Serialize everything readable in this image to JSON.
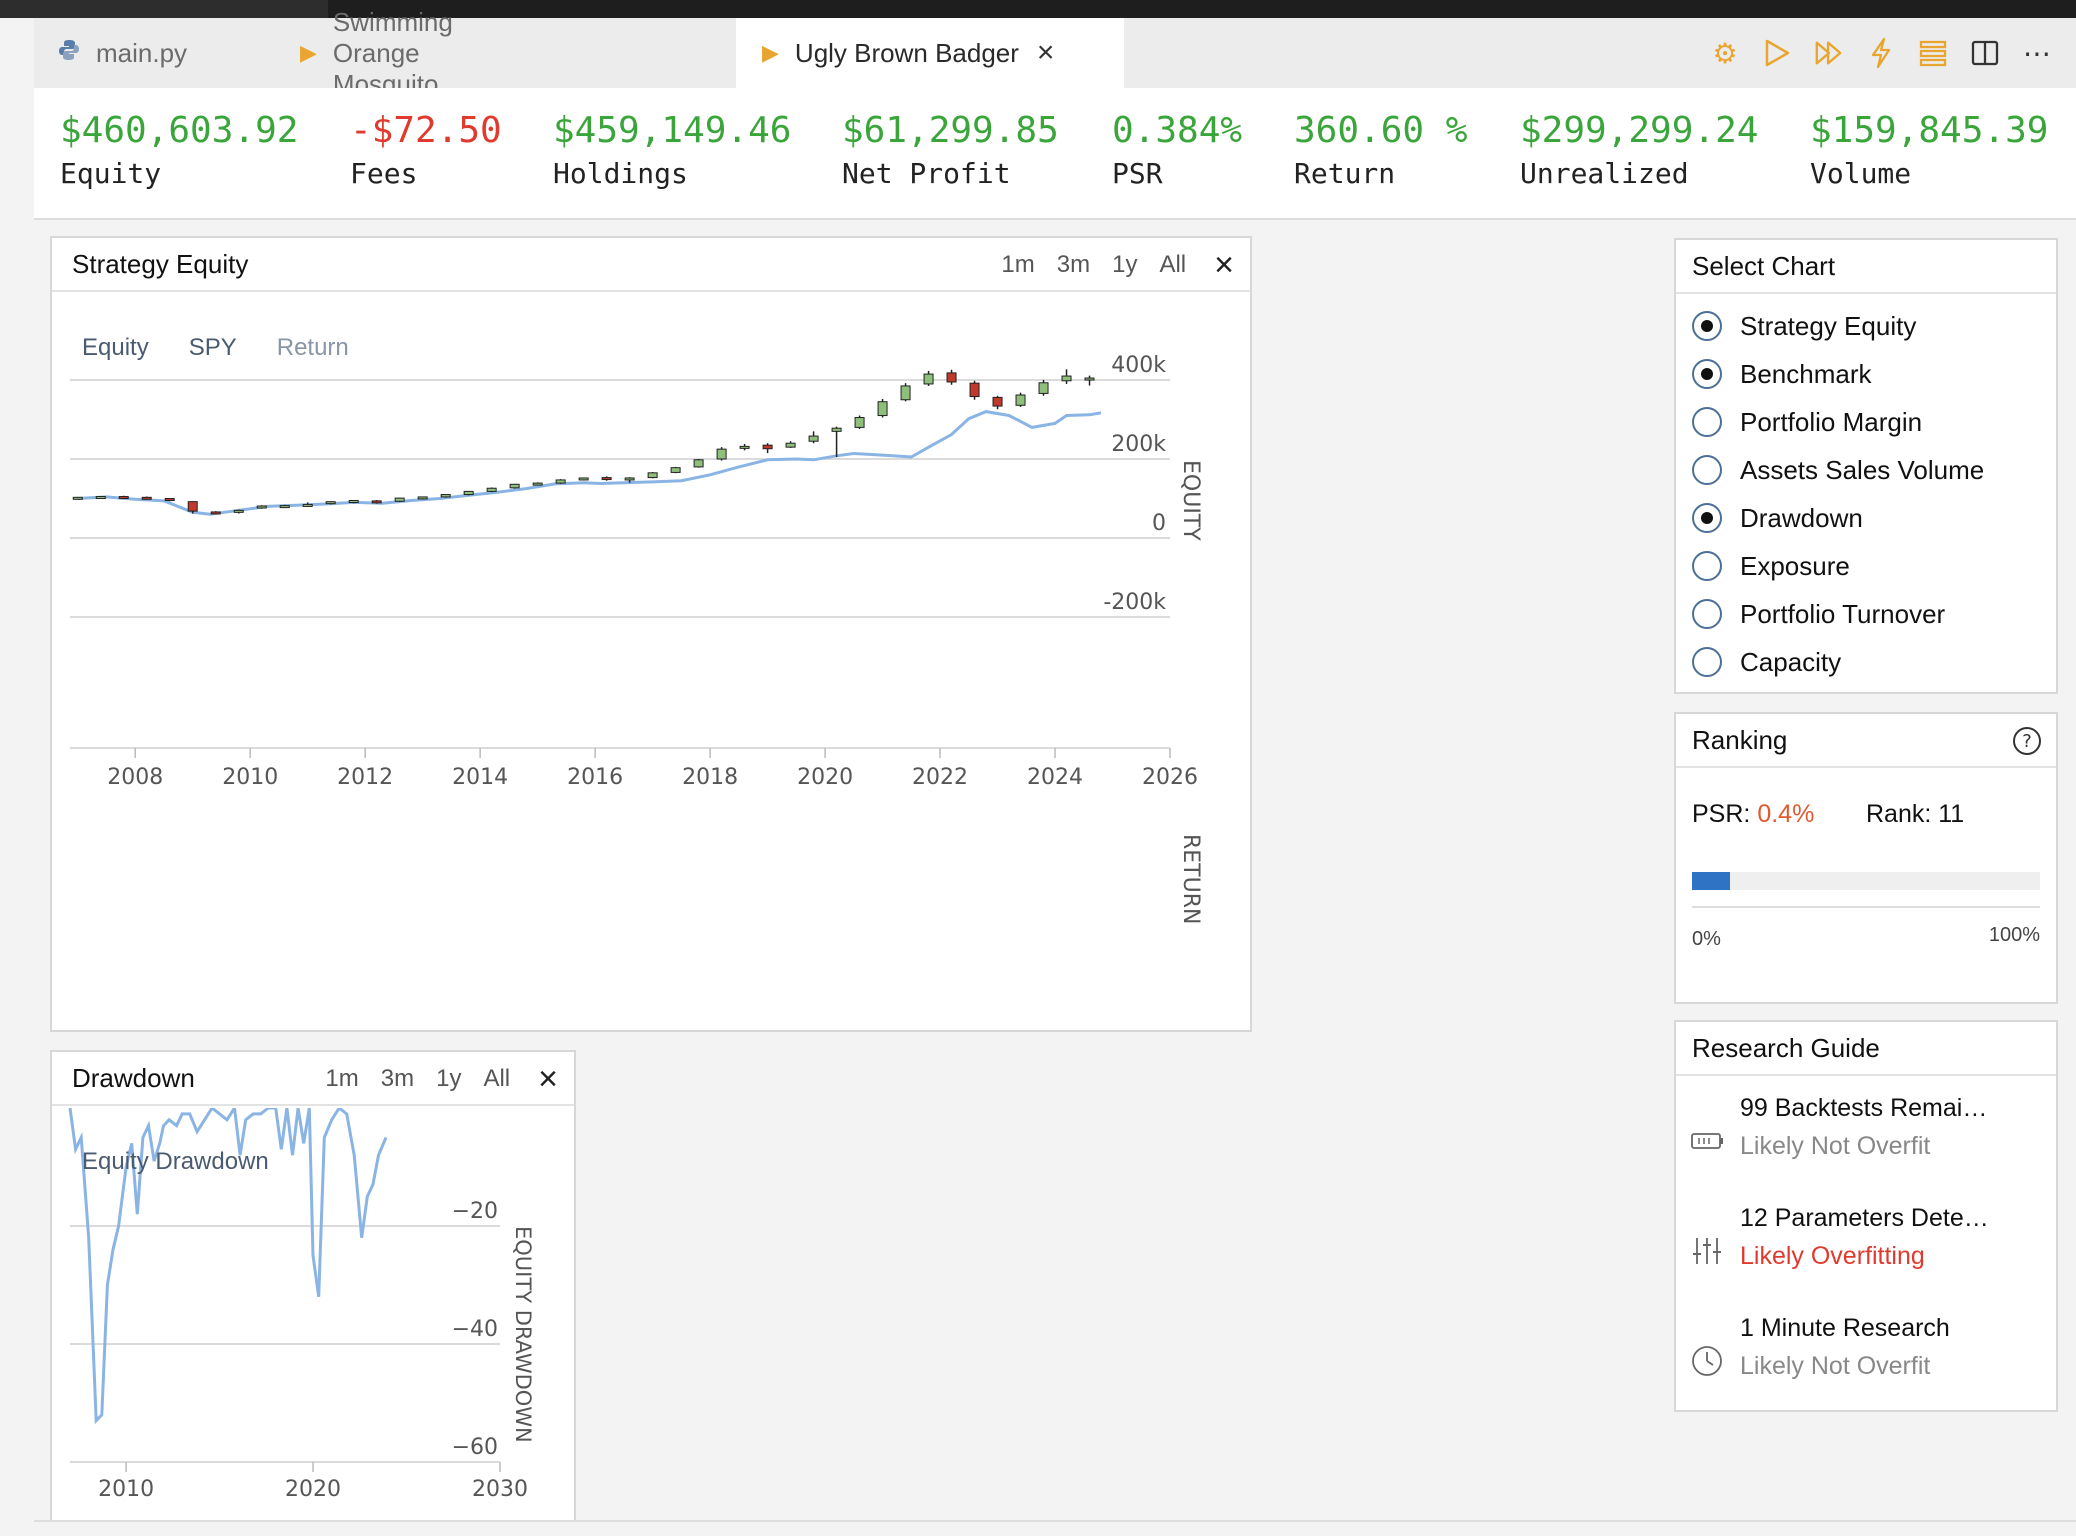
{
  "tabs": [
    {
      "label": "main.py",
      "icon": "python-icon"
    },
    {
      "label": "Swimming Orange Mosquito",
      "icon": "play-icon"
    },
    {
      "label": "Ugly Brown Badger",
      "icon": "play-icon",
      "active": true
    }
  ],
  "toolbar_icons": [
    "gear-icon",
    "play-icon",
    "fast-forward-icon",
    "lightning-icon",
    "list-icon",
    "split-view-icon",
    "more-icon"
  ],
  "stats": [
    {
      "value": "$460,603.92",
      "label": "Equity"
    },
    {
      "value": "-$72.50",
      "label": "Fees",
      "negative": true
    },
    {
      "value": "$459,149.46",
      "label": "Holdings"
    },
    {
      "value": "$61,299.85",
      "label": "Net Profit"
    },
    {
      "value": "0.384%",
      "label": "PSR"
    },
    {
      "value": "360.60 %",
      "label": "Return"
    },
    {
      "value": "$299,299.24",
      "label": "Unrealized"
    },
    {
      "value": "$159,845.39",
      "label": "Volume"
    }
  ],
  "equity_panel": {
    "title": "Strategy Equity",
    "ranges": [
      "1m",
      "3m",
      "1y",
      "All"
    ],
    "legend": [
      "Equity",
      "SPY",
      "Return"
    ]
  },
  "drawdown_panel": {
    "title": "Drawdown",
    "ranges": [
      "1m",
      "3m",
      "1y",
      "All"
    ],
    "legend": "Equity Drawdown"
  },
  "select_chart": {
    "title": "Select Chart",
    "options": [
      {
        "label": "Strategy Equity",
        "checked": true
      },
      {
        "label": "Benchmark",
        "checked": true
      },
      {
        "label": "Portfolio Margin",
        "checked": false
      },
      {
        "label": "Assets Sales Volume",
        "checked": false
      },
      {
        "label": "Drawdown",
        "checked": true
      },
      {
        "label": "Exposure",
        "checked": false
      },
      {
        "label": "Portfolio Turnover",
        "checked": false
      },
      {
        "label": "Capacity",
        "checked": false
      }
    ]
  },
  "ranking": {
    "title": "Ranking",
    "psr_label": "PSR:",
    "psr_value": "0.4%",
    "rank_label": "Rank: 11",
    "bar_fraction": 0.11,
    "min_label": "0%",
    "max_label": "100%"
  },
  "research_guide": {
    "title": "Research Guide",
    "items": [
      {
        "title": "99 Backtests Remai…",
        "status": "Likely Not Overfit",
        "status_red": false,
        "icon": "battery-icon"
      },
      {
        "title": "12 Parameters Dete…",
        "status": "Likely Overfitting",
        "status_red": true,
        "icon": "sliders-icon"
      },
      {
        "title": "1 Minute Research",
        "status": "Likely Not Overfit",
        "status_red": false,
        "icon": "clock-icon"
      }
    ]
  },
  "chart_data": [
    {
      "type": "line",
      "title": "Strategy Equity",
      "x_ticks": [
        2008,
        2010,
        2012,
        2014,
        2016,
        2018,
        2020,
        2022,
        2024,
        2026
      ],
      "y_ticks": [
        400000,
        200000,
        0,
        -200000
      ],
      "y_tick_labels": [
        "400k",
        "200k",
        "0",
        "-200k"
      ],
      "y_axis_label": "EQUITY",
      "y2_axis_label": "RETURN",
      "ylim": [
        -200000,
        400000
      ],
      "xlim": [
        2006.9,
        2026
      ],
      "series": [
        {
          "name": "Equity",
          "style": "candlestick",
          "candles": [
            {
              "x": 2007.0,
              "o": 100000,
              "c": 103000,
              "h": 104000,
              "l": 98000
            },
            {
              "x": 2007.4,
              "o": 103000,
              "c": 105000,
              "h": 106000,
              "l": 101000
            },
            {
              "x": 2007.8,
              "o": 105000,
              "c": 103000,
              "h": 107000,
              "l": 101000
            },
            {
              "x": 2008.2,
              "o": 103000,
              "c": 100000,
              "h": 105000,
              "l": 98000
            },
            {
              "x": 2008.6,
              "o": 100000,
              "c": 96000,
              "h": 101000,
              "l": 93000
            },
            {
              "x": 2009.0,
              "o": 92000,
              "c": 68000,
              "h": 93000,
              "l": 62000
            },
            {
              "x": 2009.4,
              "o": 66000,
              "c": 63000,
              "h": 68000,
              "l": 60000
            },
            {
              "x": 2009.8,
              "o": 65000,
              "c": 70000,
              "h": 72000,
              "l": 62000
            },
            {
              "x": 2010.2,
              "o": 76000,
              "c": 81000,
              "h": 83000,
              "l": 74000
            },
            {
              "x": 2010.6,
              "o": 80000,
              "c": 82000,
              "h": 84000,
              "l": 78000
            },
            {
              "x": 2011.0,
              "o": 83000,
              "c": 85000,
              "h": 90000,
              "l": 82000
            },
            {
              "x": 2011.4,
              "o": 87000,
              "c": 92000,
              "h": 93000,
              "l": 85000
            },
            {
              "x": 2011.8,
              "o": 91000,
              "c": 95000,
              "h": 96000,
              "l": 88000
            },
            {
              "x": 2012.2,
              "o": 94000,
              "c": 91000,
              "h": 96000,
              "l": 87000
            },
            {
              "x": 2012.6,
              "o": 93000,
              "c": 101000,
              "h": 102000,
              "l": 91000
            },
            {
              "x": 2013.0,
              "o": 100000,
              "c": 104000,
              "h": 105000,
              "l": 98000
            },
            {
              "x": 2013.4,
              "o": 104000,
              "c": 110000,
              "h": 111000,
              "l": 102000
            },
            {
              "x": 2013.8,
              "o": 110000,
              "c": 118000,
              "h": 119000,
              "l": 108000
            },
            {
              "x": 2014.2,
              "o": 118000,
              "c": 126000,
              "h": 128000,
              "l": 116000
            },
            {
              "x": 2014.6,
              "o": 127000,
              "c": 136000,
              "h": 137000,
              "l": 125000
            },
            {
              "x": 2015.0,
              "o": 137000,
              "c": 139000,
              "h": 141000,
              "l": 134000
            },
            {
              "x": 2015.4,
              "o": 139000,
              "c": 147000,
              "h": 149000,
              "l": 137000
            },
            {
              "x": 2015.8,
              "o": 148000,
              "c": 152000,
              "h": 153000,
              "l": 146000
            },
            {
              "x": 2016.2,
              "o": 153000,
              "c": 148000,
              "h": 156000,
              "l": 145000
            },
            {
              "x": 2016.6,
              "o": 149000,
              "c": 152000,
              "h": 154000,
              "l": 140000
            },
            {
              "x": 2017.0,
              "o": 153000,
              "c": 165000,
              "h": 167000,
              "l": 151000
            },
            {
              "x": 2017.4,
              "o": 166000,
              "c": 178000,
              "h": 180000,
              "l": 164000
            },
            {
              "x": 2017.8,
              "o": 180000,
              "c": 198000,
              "h": 200000,
              "l": 178000
            },
            {
              "x": 2018.2,
              "o": 200000,
              "c": 225000,
              "h": 230000,
              "l": 196000
            },
            {
              "x": 2018.6,
              "o": 228000,
              "c": 232000,
              "h": 238000,
              "l": 222000
            },
            {
              "x": 2019.0,
              "o": 235000,
              "c": 226000,
              "h": 240000,
              "l": 215000
            },
            {
              "x": 2019.4,
              "o": 230000,
              "c": 240000,
              "h": 245000,
              "l": 228000
            },
            {
              "x": 2019.8,
              "o": 245000,
              "c": 258000,
              "h": 270000,
              "l": 240000
            },
            {
              "x": 2020.2,
              "o": 270000,
              "c": 278000,
              "h": 282000,
              "l": 205000
            },
            {
              "x": 2020.6,
              "o": 280000,
              "c": 305000,
              "h": 310000,
              "l": 276000
            },
            {
              "x": 2021.0,
              "o": 310000,
              "c": 345000,
              "h": 352000,
              "l": 305000
            },
            {
              "x": 2021.4,
              "o": 350000,
              "c": 385000,
              "h": 392000,
              "l": 346000
            },
            {
              "x": 2021.8,
              "o": 390000,
              "c": 415000,
              "h": 423000,
              "l": 385000
            },
            {
              "x": 2022.2,
              "o": 418000,
              "c": 395000,
              "h": 426000,
              "l": 388000
            },
            {
              "x": 2022.6,
              "o": 392000,
              "c": 358000,
              "h": 398000,
              "l": 350000
            },
            {
              "x": 2023.0,
              "o": 356000,
              "c": 334000,
              "h": 360000,
              "l": 326000
            },
            {
              "x": 2023.4,
              "o": 336000,
              "c": 362000,
              "h": 368000,
              "l": 332000
            },
            {
              "x": 2023.8,
              "o": 366000,
              "c": 393000,
              "h": 400000,
              "l": 360000
            },
            {
              "x": 2024.2,
              "o": 398000,
              "c": 410000,
              "h": 427000,
              "l": 390000
            },
            {
              "x": 2024.6,
              "o": 403000,
              "c": 405000,
              "h": 411000,
              "l": 386000
            }
          ]
        },
        {
          "name": "SPY",
          "style": "line",
          "x": [
            2007.0,
            2007.5,
            2008.0,
            2008.5,
            2009.0,
            2009.3,
            2009.8,
            2010.3,
            2010.8,
            2011.3,
            2011.8,
            2012.3,
            2012.8,
            2013.3,
            2013.8,
            2014.3,
            2014.8,
            2015.3,
            2015.8,
            2016.1,
            2016.5,
            2017.0,
            2017.5,
            2018.0,
            2018.5,
            2019.0,
            2019.5,
            2019.8,
            2020.2,
            2020.5,
            2021.0,
            2021.5,
            2021.8,
            2022.2,
            2022.5,
            2022.8,
            2023.2,
            2023.6,
            2024.0,
            2024.2,
            2024.6,
            2024.8
          ],
          "values": [
            100000,
            104000,
            98000,
            94000,
            65000,
            60000,
            70000,
            80000,
            83000,
            86000,
            90000,
            88000,
            95000,
            100000,
            108000,
            116000,
            125000,
            137000,
            140000,
            138000,
            140000,
            142000,
            145000,
            160000,
            180000,
            198000,
            200000,
            198000,
            208000,
            214000,
            210000,
            205000,
            230000,
            262000,
            302000,
            320000,
            310000,
            280000,
            290000,
            310000,
            312000,
            317000
          ]
        }
      ]
    },
    {
      "type": "line",
      "title": "Drawdown",
      "series_name": "Equity Drawdown",
      "x_ticks": [
        2010,
        2020,
        2030
      ],
      "y_ticks": [
        -20,
        -40,
        -60
      ],
      "y_axis_label": "EQUITY DRAWDOWN",
      "ylim": [
        -60,
        0
      ],
      "xlim": [
        2007,
        2030
      ],
      "x": [
        2007.0,
        2007.3,
        2007.6,
        2008.0,
        2008.4,
        2008.7,
        2009.0,
        2009.3,
        2009.6,
        2010.0,
        2010.3,
        2010.6,
        2010.9,
        2011.2,
        2011.5,
        2011.8,
        2012.0,
        2012.3,
        2012.7,
        2013.0,
        2013.4,
        2013.8,
        2014.2,
        2014.6,
        2015.0,
        2015.4,
        2015.8,
        2016.1,
        2016.4,
        2016.8,
        2017.2,
        2017.6,
        2018.0,
        2018.3,
        2018.6,
        2018.9,
        2019.2,
        2019.5,
        2019.8,
        2020.0,
        2020.3,
        2020.6,
        2021.0,
        2021.4,
        2021.8,
        2022.2,
        2022.6,
        2022.9,
        2023.2,
        2023.5,
        2023.9
      ],
      "values": [
        0,
        -7,
        -5,
        -22,
        -53,
        -52,
        -30,
        -24,
        -20,
        -10,
        -6,
        -18,
        -5,
        -3,
        -9,
        -6,
        -3,
        -2,
        -3,
        -1,
        -1,
        -4,
        -2,
        0,
        -1,
        -2,
        0,
        -8,
        -2,
        -1,
        -1,
        0,
        0,
        -7,
        0,
        -8,
        0,
        -6,
        0,
        -25,
        -32,
        -5,
        -2,
        0,
        -1,
        -8,
        -22,
        -15,
        -13,
        -8,
        -5
      ]
    }
  ]
}
